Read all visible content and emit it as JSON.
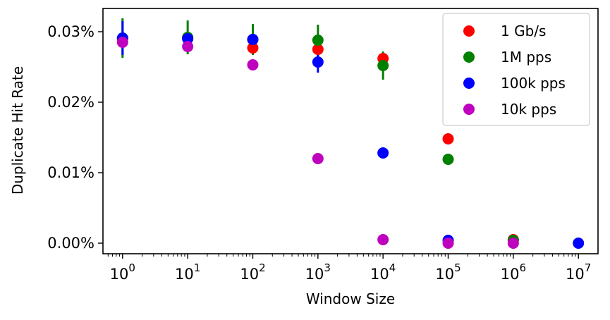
{
  "chart_data": {
    "type": "scatter",
    "xlabel": "Window Size",
    "ylabel": "Duplicate Hit Rate",
    "xscale": "log",
    "xlim": [
      0.5,
      20000000
    ],
    "ylim": [
      -0.0015,
      0.0333
    ],
    "x_ticks": [
      {
        "base": "10",
        "exp": "0",
        "value": 1
      },
      {
        "base": "10",
        "exp": "1",
        "value": 10
      },
      {
        "base": "10",
        "exp": "2",
        "value": 100
      },
      {
        "base": "10",
        "exp": "3",
        "value": 1000
      },
      {
        "base": "10",
        "exp": "4",
        "value": 10000
      },
      {
        "base": "10",
        "exp": "5",
        "value": 100000
      },
      {
        "base": "10",
        "exp": "6",
        "value": 1000000
      },
      {
        "base": "10",
        "exp": "7",
        "value": 10000000
      }
    ],
    "y_ticks": [
      {
        "label": "0.00%",
        "value": 0
      },
      {
        "label": "0.01%",
        "value": 0.01
      },
      {
        "label": "0.02%",
        "value": 0.02
      },
      {
        "label": "0.03%",
        "value": 0.03
      }
    ],
    "legend_position": "top-right",
    "grid": false,
    "series": [
      {
        "name": "1 Gb/s",
        "color": "#ff0000",
        "points": [
          {
            "x": 1,
            "y": 0.029,
            "err": 0.0
          },
          {
            "x": 10,
            "y": 0.0291,
            "err": 0.0
          },
          {
            "x": 100,
            "y": 0.0277,
            "err": 0.0
          },
          {
            "x": 1000,
            "y": 0.0275,
            "err": 0.0
          },
          {
            "x": 10000,
            "y": 0.0262,
            "err": 0.0
          },
          {
            "x": 100000,
            "y": 0.0148,
            "err": 0.0
          },
          {
            "x": 1000000,
            "y": 0.0005,
            "err": 0.0
          }
        ]
      },
      {
        "name": "1M pps",
        "color": "#008000",
        "points": [
          {
            "x": 1,
            "y": 0.0291,
            "err": 0.0028
          },
          {
            "x": 10,
            "y": 0.0292,
            "err": 0.0024
          },
          {
            "x": 100,
            "y": 0.0289,
            "err": 0.0022
          },
          {
            "x": 1000,
            "y": 0.0288,
            "err": 0.0022
          },
          {
            "x": 10000,
            "y": 0.0252,
            "err": 0.002
          },
          {
            "x": 100000,
            "y": 0.0119,
            "err": 0.0
          },
          {
            "x": 1000000,
            "y": 0.0004,
            "err": 0.0
          }
        ]
      },
      {
        "name": "100k pps",
        "color": "#0000ff",
        "points": [
          {
            "x": 1,
            "y": 0.0291,
            "err": 0.0024
          },
          {
            "x": 10,
            "y": 0.029,
            "err": 0.0
          },
          {
            "x": 100,
            "y": 0.0289,
            "err": 0.0
          },
          {
            "x": 1000,
            "y": 0.0257,
            "err": 0.0015
          },
          {
            "x": 10000,
            "y": 0.0128,
            "err": 0.0
          },
          {
            "x": 100000,
            "y": 0.0004,
            "err": 0.0
          },
          {
            "x": 10000000,
            "y": 0.0,
            "err": 0.0
          }
        ]
      },
      {
        "name": "10k pps",
        "color": "#bf00bf",
        "points": [
          {
            "x": 1,
            "y": 0.0285,
            "err": 0.0
          },
          {
            "x": 10,
            "y": 0.0279,
            "err": 0.0
          },
          {
            "x": 100,
            "y": 0.0253,
            "err": 0.0
          },
          {
            "x": 1000,
            "y": 0.012,
            "err": 0.0
          },
          {
            "x": 10000,
            "y": 0.0005,
            "err": 0.0
          },
          {
            "x": 100000,
            "y": 0.0,
            "err": 0.0
          },
          {
            "x": 1000000,
            "y": 0.0,
            "err": 0.0
          }
        ]
      }
    ]
  }
}
